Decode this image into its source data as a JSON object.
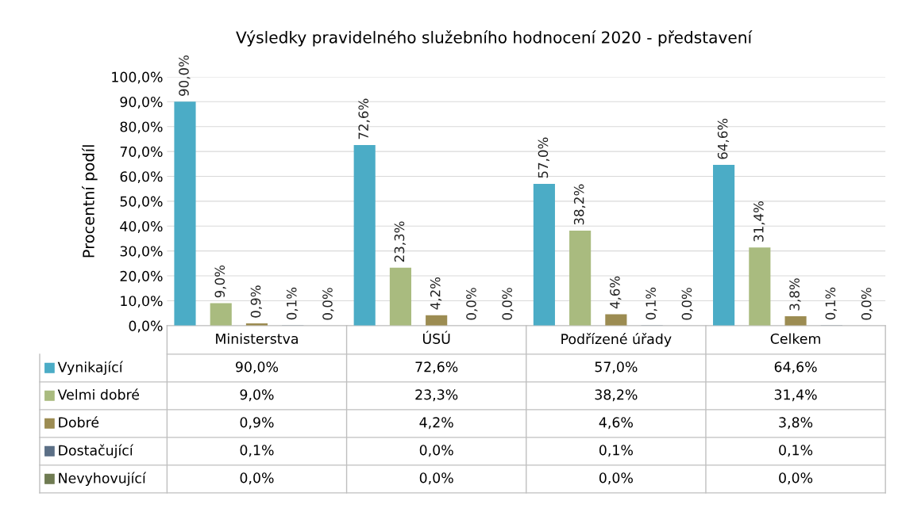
{
  "chart_data": {
    "type": "bar",
    "title": "Výsledky pravidelného služebního hodnocení 2020 - představení",
    "ylabel": "Procentní podíl",
    "categories": [
      "Ministerstva",
      "ÚSÚ",
      "Podřízené úřady",
      "Celkem"
    ],
    "series": [
      {
        "name": "Vynikající",
        "color": "#4bacc6",
        "values": [
          90.0,
          72.6,
          57.0,
          64.6
        ],
        "value_labels": [
          "90,0%",
          "72,6%",
          "57,0%",
          "64,6%"
        ]
      },
      {
        "name": "Velmi dobré",
        "color": "#a9bb7f",
        "values": [
          9.0,
          23.3,
          38.2,
          31.4
        ],
        "value_labels": [
          "9,0%",
          "23,3%",
          "38,2%",
          "31,4%"
        ]
      },
      {
        "name": "Dobré",
        "color": "#9c8c52",
        "values": [
          0.9,
          4.2,
          4.6,
          3.8
        ],
        "value_labels": [
          "0,9%",
          "4,2%",
          "4,6%",
          "3,8%"
        ]
      },
      {
        "name": "Dostačující",
        "color": "#5b6f86",
        "values": [
          0.1,
          0.0,
          0.1,
          0.1
        ],
        "value_labels": [
          "0,1%",
          "0,0%",
          "0,1%",
          "0,1%"
        ]
      },
      {
        "name": "Nevyhovující",
        "color": "#6f7b52",
        "values": [
          0.0,
          0.0,
          0.0,
          0.0
        ],
        "value_labels": [
          "0,0%",
          "0,0%",
          "0,0%",
          "0,0%"
        ]
      }
    ],
    "ylim": [
      0,
      100
    ],
    "yticks": [
      {
        "value": 0,
        "label": "0,0%"
      },
      {
        "value": 10,
        "label": "10,0%"
      },
      {
        "value": 20,
        "label": "20,0%"
      },
      {
        "value": 30,
        "label": "30,0%"
      },
      {
        "value": 40,
        "label": "40,0%"
      },
      {
        "value": 50,
        "label": "50,0%"
      },
      {
        "value": 60,
        "label": "60,0%"
      },
      {
        "value": 70,
        "label": "70,0%"
      },
      {
        "value": 80,
        "label": "80,0%"
      },
      {
        "value": 90,
        "label": "90,0%"
      },
      {
        "value": 100,
        "label": "100,0%"
      }
    ],
    "grid": "y",
    "legend": "bottom"
  }
}
